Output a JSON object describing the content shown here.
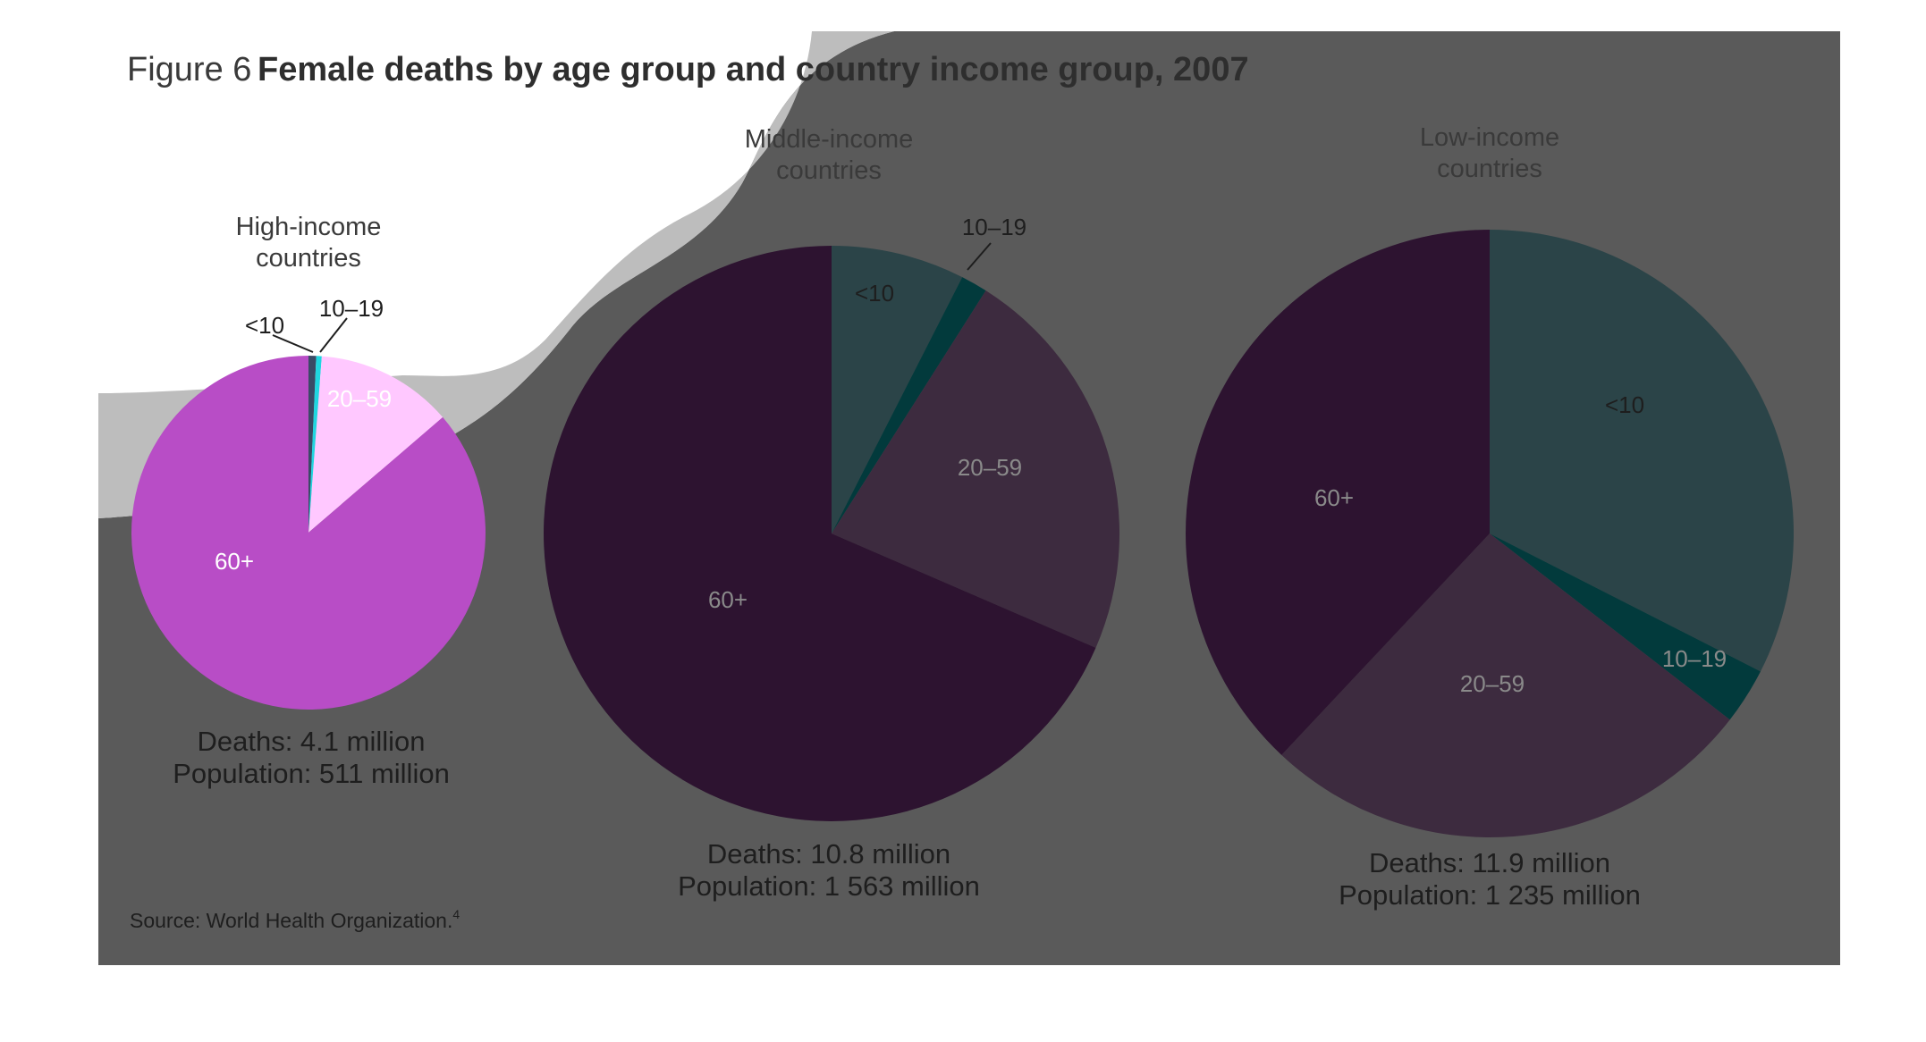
{
  "figure": {
    "label": "Figure 6",
    "title": "Female deaths by age group and country income group, 2007",
    "source": "Source: World Health Organization.",
    "source_ref": "4"
  },
  "chart_data": [
    {
      "type": "pie",
      "title": "High-income countries",
      "title_lines": [
        "High-income",
        "countries"
      ],
      "categories": [
        "<10",
        "10–19",
        "20–59",
        "60+"
      ],
      "values": [
        0.7,
        0.5,
        12.5,
        86.3
      ],
      "unit": "% of deaths",
      "colors": [
        "#3a4a66",
        "#1fd6e0",
        "#ffc8ff",
        "#b84dc6"
      ],
      "caption_lines": [
        "Deaths: 4.1 million",
        "Population: 511 million"
      ],
      "deaths_million": 4.1,
      "population_million": 511
    },
    {
      "type": "pie",
      "title": "Middle-income countries",
      "title_lines": [
        "Middle-income",
        "countries"
      ],
      "categories": [
        "<10",
        "10–19",
        "20–59",
        "60+"
      ],
      "values": [
        7.5,
        1.5,
        22.5,
        68.5
      ],
      "unit": "% of deaths",
      "colors": [
        "#2b4448",
        "#023a3c",
        "#3d2b3f",
        "#2d1330"
      ],
      "caption_lines": [
        "Deaths: 10.8 million",
        "Population: 1 563 million"
      ],
      "deaths_million": 10.8,
      "population_million": 1563
    },
    {
      "type": "pie",
      "title": "Low-income countries",
      "title_lines": [
        "Low-income",
        "countries"
      ],
      "categories": [
        "<10",
        "10–19",
        "20–59",
        "60+"
      ],
      "values": [
        32.5,
        3.0,
        26.5,
        38.0
      ],
      "unit": "% of deaths",
      "colors": [
        "#2b4448",
        "#023a3c",
        "#3d2b3f",
        "#2d1330"
      ],
      "caption_lines": [
        "Deaths: 11.9 million",
        "Population: 1 235 million"
      ],
      "deaths_million": 11.9,
      "population_million": 1235
    }
  ],
  "colors": {
    "page_background": "#ffffff",
    "overlay_dark": "#5a5a5a",
    "overlay_band": "#bdbdbd",
    "label_light": "#ffffff",
    "label_dark": "#1e1e1e",
    "label_muted": "#8a8a8a"
  }
}
